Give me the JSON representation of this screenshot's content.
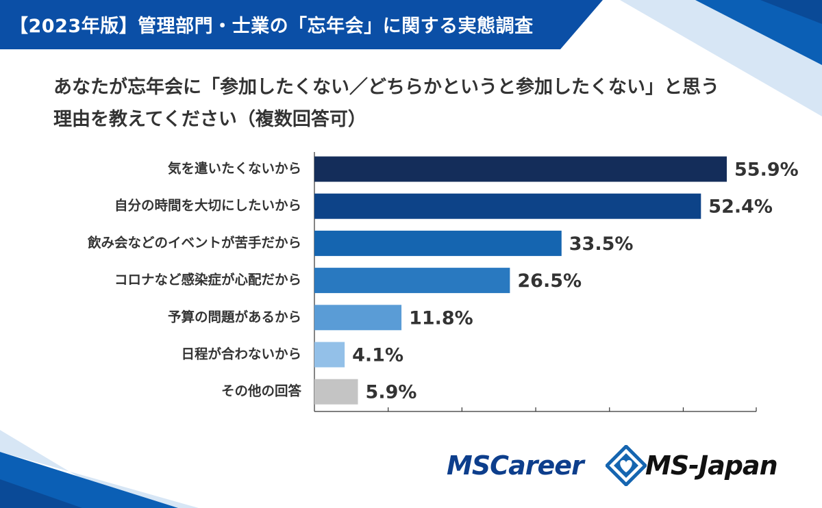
{
  "header": {
    "title": "【2023年版】管理部門・士業の「忘年会」に関する実態調査"
  },
  "question": {
    "line1": "あなたが忘年会に「参加したくない／どちらかというと参加したくない」と思う",
    "line2": "理由を教えてください（複数回答可）"
  },
  "chart_data": {
    "type": "bar",
    "orientation": "horizontal",
    "categories": [
      "気を遣いたくないから",
      "自分の時間を大切にしたいから",
      "飲み会などのイベントが苦手だから",
      "コロナなど感染症が心配だから",
      "予算の問題があるから",
      "日程が合わないから",
      "その他の回答"
    ],
    "values": [
      55.9,
      52.4,
      33.5,
      26.5,
      11.8,
      4.1,
      5.9
    ],
    "value_labels": [
      "55.9%",
      "52.4%",
      "33.5%",
      "26.5%",
      "11.8%",
      "4.1%",
      "5.9%"
    ],
    "colors": [
      "#142d5a",
      "#0d4388",
      "#1565b0",
      "#2979c0",
      "#5a9cd6",
      "#93c0e8",
      "#c4c4c4"
    ],
    "xlim": [
      0,
      60
    ],
    "grid": false,
    "legend": "none"
  },
  "logos": {
    "left": "MSCareer",
    "right": "MS-Japan",
    "mark": "diamond-heart-icon",
    "colors": {
      "mscareer": "#0d3e8c",
      "mark": "#1565b0",
      "msjapan": "#111111"
    }
  }
}
